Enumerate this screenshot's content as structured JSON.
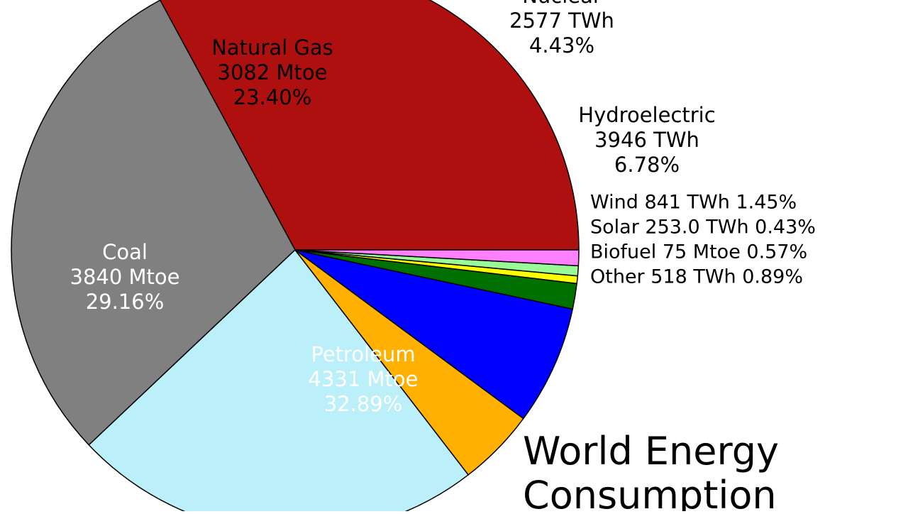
{
  "chart_data": {
    "type": "pie",
    "title": [
      "World Energy",
      "Consumption"
    ],
    "start_angle_deg": 0,
    "direction": "counterclockwise",
    "slices": [
      {
        "label": "Petroleum",
        "amount": "4331 Mtoe",
        "percent": "32.89%",
        "value": 32.89,
        "color": "#ae1010",
        "text_color": "#ffffff"
      },
      {
        "label": "Coal",
        "amount": "3840 Mtoe",
        "percent": "29.16%",
        "value": 29.16,
        "color": "#808080",
        "text_color": "#ffffff"
      },
      {
        "label": "Natural Gas",
        "amount": "3082 Mtoe",
        "percent": "23.40%",
        "value": 23.4,
        "color": "#bbf0fa",
        "text_color": "#000000"
      },
      {
        "label": "Nuclear",
        "amount": "2577 TWh",
        "percent": "4.43%",
        "value": 4.43,
        "color": "#ffb000",
        "text_color": "#000000"
      },
      {
        "label": "Hydroelectric",
        "amount": "3946 TWh",
        "percent": "6.78%",
        "value": 6.78,
        "color": "#0000ff",
        "text_color": "#000000"
      },
      {
        "label": "Wind",
        "amount": "841 TWh",
        "percent": "1.45%",
        "value": 1.45,
        "color": "#007000",
        "text_color": "#000000"
      },
      {
        "label": "Solar",
        "amount": "253.0 TWh",
        "percent": "0.43%",
        "value": 0.43,
        "color": "#ffff00",
        "text_color": "#000000"
      },
      {
        "label": "Biofuel",
        "amount": "75 Mtoe",
        "percent": "0.57%",
        "value": 0.57,
        "color": "#98fb98",
        "text_color": "#000000"
      },
      {
        "label": "Other",
        "amount": "518 TWh",
        "percent": "0.89%",
        "value": 0.89,
        "color": "#ff80ff",
        "text_color": "#000000"
      }
    ]
  }
}
